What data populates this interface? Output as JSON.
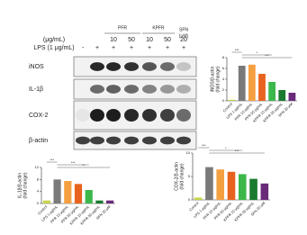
{
  "blot": {
    "unit_label": "(μg/mL)",
    "lps_label": "LPS (1 μg/mL)",
    "groups": [
      "PFR",
      "KPFR",
      "SFN"
    ],
    "sfn_unit": "(μM)",
    "doses": [
      "10",
      "50",
      "10",
      "50",
      "20"
    ],
    "lps": [
      "-",
      "+",
      "+",
      "+",
      "+",
      "+",
      "+"
    ],
    "rows": [
      "iNOS",
      "IL-1β",
      "COX-2",
      "β-actin"
    ]
  },
  "chart_data": [
    {
      "type": "bar",
      "y_label": "iNOS/β-actin",
      "y_unit": "(fold change)",
      "categories": [
        "Control",
        "LPS 1 μg/mL",
        "PFR 10 μg/mL",
        "PFR 50 μg/mL",
        "KPFR 10 μg/mL",
        "KPFR 50 μg/mL",
        "SFN 20 μM"
      ],
      "values": [
        0.2,
        6.5,
        6.7,
        5,
        3.5,
        2,
        1.5
      ],
      "colors": [
        "#c8d44a",
        "#7a7a7a",
        "#f5a040",
        "#e8641e",
        "#3cb84a",
        "#1a7a30",
        "#6a2a7a"
      ],
      "ylim": [
        0,
        8
      ],
      "yticks": [
        0,
        2,
        4,
        6,
        8
      ],
      "annotations": [
        "***",
        "*",
        "***"
      ]
    },
    {
      "type": "bar",
      "y_label": "IL-1β/β-actin",
      "y_unit": "(fold change)",
      "categories": [
        "Control",
        "LPS 1 μg/mL",
        "PFR 10 μg/mL",
        "PFR 50 μg/mL",
        "KPFR 10 μg/mL",
        "KPFR 50 μg/mL",
        "SFN 20 μM"
      ],
      "values": [
        1,
        8,
        7.5,
        6.5,
        4.5,
        1,
        1
      ],
      "colors": [
        "#c8d44a",
        "#7a7a7a",
        "#f5a040",
        "#e8641e",
        "#3cb84a",
        "#1a7a30",
        "#6a2a7a"
      ],
      "ylim": [
        0,
        12
      ],
      "yticks": [
        0,
        4,
        8,
        12
      ],
      "annotations": [
        "***",
        "***",
        "**"
      ]
    },
    {
      "type": "bar",
      "y_label": "COX-2/β-actin",
      "y_unit": "(fold change)",
      "categories": [
        "Control",
        "LPS 1 μg/mL",
        "PFR 10 μg/mL",
        "PFR 50 μg/mL",
        "KPFR 10 μg/mL",
        "KPFR 50 μg/mL",
        "SFN 20 μM"
      ],
      "values": [
        0.5,
        7,
        6.5,
        6,
        5.5,
        4.5,
        3.5
      ],
      "colors": [
        "#c8d44a",
        "#7a7a7a",
        "#f5a040",
        "#e8641e",
        "#3cb84a",
        "#1a7a30",
        "#6a2a7a"
      ],
      "ylim": [
        0,
        10
      ],
      "yticks": [
        0,
        5,
        10
      ],
      "annotations": [
        "***",
        "*",
        "***"
      ]
    }
  ]
}
